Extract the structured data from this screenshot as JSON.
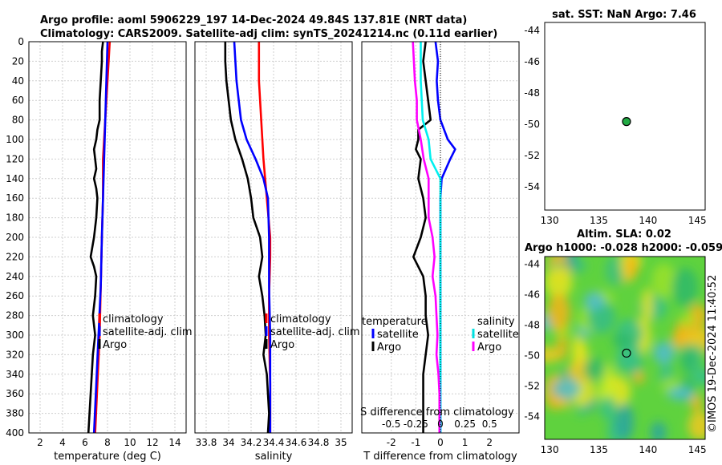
{
  "header": {
    "title_line1": "Argo profile: aoml 5906229_197 14-Dec-2024 49.84S 137.81E (NRT data)",
    "title_line2": "Climatology: CARS2009. Satellite-adj clim: synTS_20241214.nc (0.11d earlier)"
  },
  "colors": {
    "climatology": "#ff0000",
    "satellite": "#0000ff",
    "argo": "#000000",
    "sat_salinity": "#00e0e0",
    "argo_salinity_diff": "#ff00ff"
  },
  "chart_data": [
    {
      "type": "line",
      "id": "temperature",
      "xlabel": "temperature (deg C)",
      "ylabel": "",
      "xlim": [
        1,
        15
      ],
      "ylim": [
        0,
        400
      ],
      "xticks": [
        2,
        4,
        6,
        8,
        10,
        12,
        14
      ],
      "yticks": [
        0,
        20,
        40,
        60,
        80,
        100,
        120,
        140,
        160,
        180,
        200,
        220,
        240,
        260,
        280,
        300,
        320,
        340,
        360,
        380,
        400
      ],
      "legend": [
        "climatology",
        "satellite-adj. clim",
        "Argo"
      ],
      "series": [
        {
          "name": "climatology",
          "color": "red",
          "depth": [
            0,
            40,
            80,
            100,
            120,
            140,
            160,
            200,
            250,
            300,
            350,
            400
          ],
          "values": [
            8.2,
            8.0,
            7.8,
            7.7,
            7.6,
            7.6,
            7.6,
            7.5,
            7.4,
            7.3,
            7.1,
            6.9
          ]
        },
        {
          "name": "satellite-adj. clim",
          "color": "blue",
          "depth": [
            0,
            40,
            80,
            120,
            160,
            200,
            250,
            300,
            350,
            400
          ],
          "values": [
            8.0,
            7.9,
            7.8,
            7.7,
            7.6,
            7.5,
            7.4,
            7.2,
            7.0,
            6.8
          ]
        },
        {
          "name": "Argo",
          "color": "black",
          "depth": [
            0,
            10,
            20,
            40,
            60,
            80,
            90,
            100,
            110,
            120,
            130,
            140,
            150,
            160,
            180,
            200,
            220,
            230,
            240,
            260,
            280,
            300,
            320,
            340,
            360,
            380,
            400
          ],
          "values": [
            7.6,
            7.5,
            7.5,
            7.4,
            7.3,
            7.3,
            7.1,
            7.0,
            6.8,
            6.9,
            7.0,
            6.8,
            7.0,
            7.1,
            7.0,
            6.8,
            6.5,
            6.8,
            7.0,
            6.9,
            6.7,
            6.9,
            6.7,
            6.6,
            6.5,
            6.4,
            6.3
          ]
        }
      ]
    },
    {
      "type": "line",
      "id": "salinity",
      "xlabel": "salinity",
      "xlim": [
        33.7,
        35.1
      ],
      "ylim": [
        0,
        400
      ],
      "xticks": [
        33.8,
        34,
        34.2,
        34.4,
        34.6,
        34.8,
        35
      ],
      "xticklabels": [
        "33.8",
        "34",
        "34.2",
        "34.4",
        "34.6",
        "34.8",
        "35"
      ],
      "legend": [
        "climatology",
        "satellite-adj. clim",
        "Argo"
      ],
      "series": [
        {
          "name": "climatology",
          "color": "red",
          "depth": [
            0,
            40,
            80,
            120,
            160,
            200,
            220,
            260,
            300,
            350,
            400
          ],
          "values": [
            34.27,
            34.27,
            34.29,
            34.31,
            34.34,
            34.37,
            34.37,
            34.36,
            34.36,
            34.37,
            34.37
          ]
        },
        {
          "name": "satellite-adj. clim",
          "color": "blue",
          "depth": [
            0,
            40,
            80,
            100,
            120,
            140,
            160,
            200,
            250,
            300,
            350,
            400
          ],
          "values": [
            34.05,
            34.07,
            34.11,
            34.16,
            34.24,
            34.31,
            34.35,
            34.36,
            34.36,
            34.37,
            34.37,
            34.37
          ]
        },
        {
          "name": "Argo",
          "color": "black",
          "depth": [
            0,
            20,
            40,
            60,
            80,
            100,
            120,
            140,
            160,
            180,
            200,
            220,
            240,
            260,
            280,
            300,
            320,
            340,
            360,
            380,
            400
          ],
          "values": [
            33.97,
            33.97,
            33.98,
            34.0,
            34.02,
            34.06,
            34.12,
            34.17,
            34.2,
            34.22,
            34.28,
            34.3,
            34.27,
            34.3,
            34.32,
            34.33,
            34.31,
            34.34,
            34.35,
            34.36,
            34.35
          ]
        }
      ]
    },
    {
      "type": "line",
      "id": "difference",
      "xlabel": "T difference from climatology",
      "xlabel_top": "S difference from climatology",
      "xlim": [
        -3.2,
        3.2
      ],
      "ylim": [
        0,
        400
      ],
      "xticks": [
        -2,
        -1,
        0,
        1,
        2
      ],
      "xticks_top": [
        "-0.5",
        "-0.25",
        "0",
        "0.25",
        "0.5"
      ],
      "legend_temperature_title": "temperature",
      "legend_salinity_title": "salinity",
      "legend_temperature": [
        "satellite",
        "Argo"
      ],
      "legend_salinity": [
        "satellite",
        "Argo"
      ],
      "series": [
        {
          "name": "T satellite",
          "color": "blue",
          "depth": [
            0,
            20,
            40,
            60,
            80,
            100,
            110,
            120,
            140,
            160,
            200,
            240,
            300,
            350,
            400
          ],
          "values": [
            -0.2,
            -0.1,
            -0.15,
            -0.1,
            0,
            0.3,
            0.6,
            0.4,
            0.05,
            0,
            0,
            0,
            0,
            0,
            0
          ]
        },
        {
          "name": "T Argo",
          "color": "black",
          "depth": [
            0,
            20,
            40,
            60,
            80,
            90,
            100,
            110,
            120,
            140,
            160,
            180,
            200,
            220,
            240,
            260,
            280,
            300,
            320,
            340,
            360,
            380,
            400
          ],
          "values": [
            -0.6,
            -0.7,
            -0.6,
            -0.5,
            -0.4,
            -0.9,
            -0.9,
            -1.0,
            -0.8,
            -0.9,
            -0.7,
            -0.6,
            -0.8,
            -1.1,
            -0.7,
            -0.6,
            -0.6,
            -0.5,
            -0.6,
            -0.7,
            -0.7,
            -0.7,
            -0.7
          ]
        },
        {
          "name": "S satellite",
          "color": "cyan",
          "depth": [
            0,
            40,
            80,
            100,
            120,
            140,
            160,
            200,
            250,
            300,
            350,
            400
          ],
          "values": [
            -0.2,
            -0.2,
            -0.18,
            -0.12,
            -0.1,
            0,
            0,
            0,
            0,
            0,
            0,
            0
          ]
        },
        {
          "name": "S Argo",
          "color": "magenta",
          "depth": [
            0,
            20,
            40,
            60,
            80,
            100,
            120,
            140,
            160,
            180,
            200,
            220,
            240,
            260,
            280,
            300,
            320,
            340,
            360,
            380,
            400
          ],
          "values": [
            -0.28,
            -0.27,
            -0.26,
            -0.24,
            -0.24,
            -0.2,
            -0.17,
            -0.12,
            -0.12,
            -0.12,
            -0.08,
            -0.06,
            -0.08,
            -0.05,
            -0.04,
            -0.03,
            -0.04,
            -0.02,
            -0.01,
            -0.01,
            -0.01
          ]
        }
      ]
    },
    {
      "type": "scatter",
      "id": "sst_map",
      "title": "sat. SST: NaN Argo: 7.46",
      "xlim": [
        129.5,
        145.8
      ],
      "ylim": [
        -55.5,
        -43.5
      ],
      "xticks": [
        130,
        135,
        140,
        145
      ],
      "yticks": [
        -44,
        -46,
        -48,
        -50,
        -52,
        -54
      ],
      "points": [
        {
          "x": 137.81,
          "y": -49.84
        }
      ]
    },
    {
      "type": "heatmap",
      "id": "sla_map",
      "title_line1": "Altim. SLA: 0.02",
      "title_line2": "Argo h1000: -0.028 h2000: -0.059",
      "xlim": [
        129.5,
        145.8
      ],
      "ylim": [
        -55.5,
        -43.5
      ],
      "xticks": [
        130,
        135,
        140,
        145
      ],
      "yticks": [
        -44,
        -46,
        -48,
        -50,
        -52,
        -54
      ],
      "points": [
        {
          "x": 137.81,
          "y": -49.84
        }
      ]
    }
  ],
  "watermark": "©IMOS 19-Dec-2024 11:40:52"
}
